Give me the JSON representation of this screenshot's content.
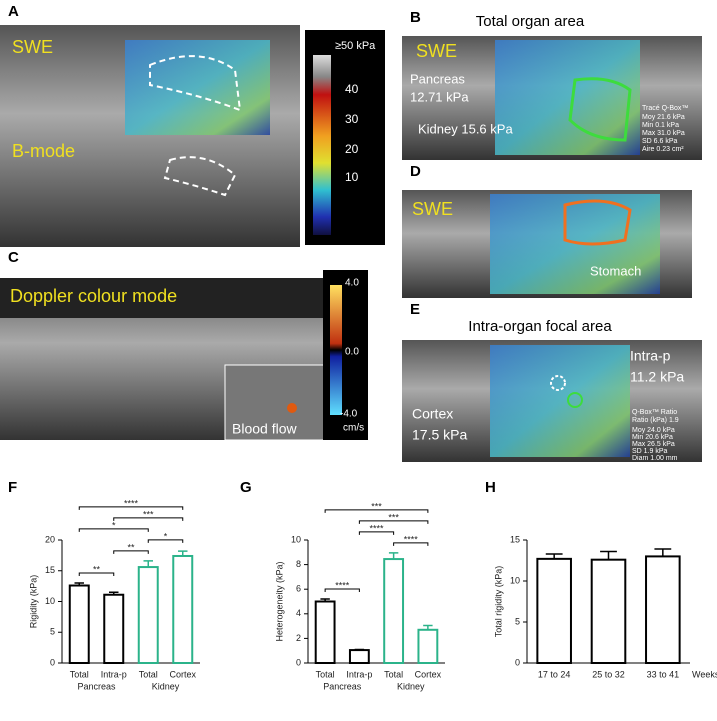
{
  "panels": {
    "A": {
      "label": "A",
      "swe": "SWE",
      "bmode": "B-mode",
      "colorbar": [
        "≥50 kPa",
        "40",
        "30",
        "20",
        "10"
      ]
    },
    "B": {
      "label": "B",
      "title": "Total organ area",
      "swe": "SWE",
      "pancreas": "Pancreas",
      "pancreas_value": "12.71 kPa",
      "kidney": "Kidney 15.6 kPa",
      "qbox": [
        "Tracé Q-Box™",
        "Moy 21.6 kPa",
        "Min 0.1 kPa",
        "Max 31.0 kPa",
        "SD 6.6 kPa",
        "Aire 0.23 cm²"
      ]
    },
    "C": {
      "label": "C",
      "mode": "Doppler colour mode",
      "colorbar": [
        "4.0",
        "0.0",
        "-4.0",
        "cm/s"
      ],
      "inset": "Blood flow"
    },
    "D": {
      "label": "D",
      "swe": "SWE",
      "stomach": "Stomach"
    },
    "E": {
      "label": "E",
      "title": "Intra-organ focal area",
      "intra": "Intra-p",
      "intra_value": "11.2 kPa",
      "cortex": "Cortex",
      "cortex_value": "17.5 kPa",
      "qbox": [
        "Q-Box™ Ratio",
        "Ratio (kPa) 1.9",
        "Moy 24.0 kPa",
        "Min 20.6 kPa",
        "Max 26.5 kPa",
        "SD 1.9 kPa",
        "Diam 1.00 mm"
      ]
    }
  },
  "chart_data": [
    {
      "type": "bar",
      "panel": "F",
      "ylabel": "Rigidity (kPa)",
      "categories": [
        "Total",
        "Intra-p",
        "Total",
        "Cortex"
      ],
      "groups": [
        {
          "name": "Pancreas",
          "span": [
            0,
            1
          ]
        },
        {
          "name": "Kidney",
          "span": [
            2,
            3
          ]
        }
      ],
      "values": [
        12.6,
        11.1,
        15.6,
        17.4
      ],
      "errors": [
        0.4,
        0.4,
        1.0,
        0.8
      ],
      "colors": [
        "#000000",
        "#000000",
        "#2bb38a",
        "#2bb38a"
      ],
      "ylim": [
        0,
        20
      ],
      "yticks": [
        0,
        5,
        10,
        15,
        20
      ],
      "comparisons": [
        {
          "span": [
            0,
            3
          ],
          "label": "****"
        },
        {
          "span": [
            1,
            3
          ],
          "label": "***"
        },
        {
          "span": [
            0,
            2
          ],
          "label": "*"
        },
        {
          "span": [
            2,
            3
          ],
          "label": "*"
        },
        {
          "span": [
            1,
            2
          ],
          "label": "**"
        },
        {
          "span": [
            0,
            1
          ],
          "label": "**"
        }
      ]
    },
    {
      "type": "bar",
      "panel": "G",
      "ylabel": "Heterogeneity (kPa)",
      "categories": [
        "Total",
        "Intra-p",
        "Total",
        "Cortex"
      ],
      "groups": [
        {
          "name": "Pancreas",
          "span": [
            0,
            1
          ]
        },
        {
          "name": "Kidney",
          "span": [
            2,
            3
          ]
        }
      ],
      "values": [
        5.0,
        1.05,
        8.45,
        2.7
      ],
      "errors": [
        0.2,
        0.05,
        0.5,
        0.35
      ],
      "colors": [
        "#000000",
        "#000000",
        "#2bb38a",
        "#2bb38a"
      ],
      "ylim": [
        0,
        10
      ],
      "yticks": [
        0,
        2,
        4,
        6,
        8,
        10
      ],
      "comparisons": [
        {
          "span": [
            0,
            3
          ],
          "label": "***"
        },
        {
          "span": [
            1,
            3
          ],
          "label": "***"
        },
        {
          "span": [
            1,
            2
          ],
          "label": "****"
        },
        {
          "span": [
            2,
            3
          ],
          "label": "****"
        },
        {
          "span": [
            0,
            1
          ],
          "label": "****"
        }
      ]
    },
    {
      "type": "bar",
      "panel": "H",
      "ylabel": "Total rigidity (kPa)",
      "xlabel": "Weeks",
      "categories": [
        "17 to 24",
        "25 to 32",
        "33 to 41"
      ],
      "values": [
        12.7,
        12.6,
        13.0
      ],
      "errors": [
        0.6,
        1.0,
        0.9
      ],
      "colors": [
        "#000000",
        "#000000",
        "#000000"
      ],
      "ylim": [
        0,
        15
      ],
      "yticks": [
        0,
        5,
        10,
        15
      ]
    }
  ]
}
